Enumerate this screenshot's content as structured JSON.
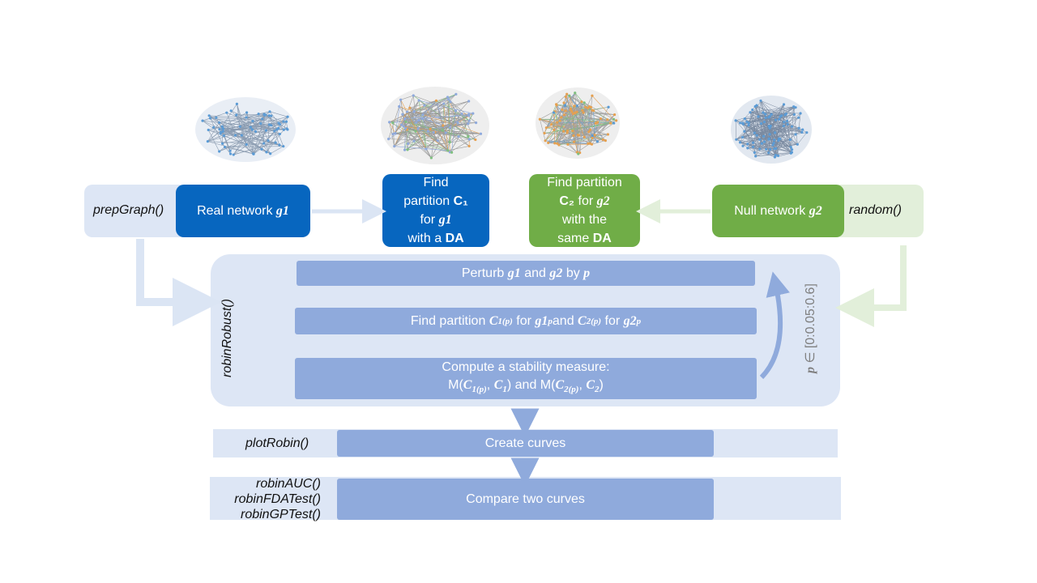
{
  "top": {
    "prep_fn": "prepGraph()",
    "real_network_label": "Real network",
    "real_network_var": "g1",
    "find_c1": {
      "line1": "Find",
      "line2": "partition",
      "c_label": "C₁",
      "line3": "for",
      "var": "g1",
      "line4": "with a",
      "da": "DA"
    },
    "find_c2": {
      "line1": "Find partition",
      "c_label": "C₂",
      "for": "for",
      "var": "g2",
      "line3": "with the",
      "line4": "same",
      "da": "DA"
    },
    "null_network_label": "Null network",
    "null_network_var": "g2",
    "random_fn": "random()"
  },
  "robust": {
    "fn": "robinRobust()",
    "param": "p ∈ [0:0.05:0.6]",
    "step1": {
      "pre": "Perturb",
      "g1": "g1",
      "and": "and",
      "g2": "g2",
      "by": "by",
      "p": "p"
    },
    "step2": {
      "pre": "Find partition",
      "c1": "C",
      "c1_sub": "1(p)",
      "for1": "for",
      "g1": "g1",
      "g1_sub": "p",
      "and": "and",
      "c2": "C",
      "c2_sub": "2(p)",
      "for2": "for",
      "g2": "g2",
      "g2_sub": "p"
    },
    "step3": {
      "line1": "Compute a stability measure:",
      "m": "M(",
      "c1p": "C",
      "c1p_sub": "1(p)",
      "comma": ",",
      "c1": "C",
      "c1_sub": "1",
      "close_and": ") and M(",
      "c2p": "C",
      "c2p_sub": "2(p)",
      "comma2": ",",
      "c2": "C",
      "c2_sub": "2",
      "close": ")"
    }
  },
  "plot": {
    "fn": "plotRobin()",
    "label": "Create curves"
  },
  "compare": {
    "fn1": "robinAUC()",
    "fn2": "robinFDATest()",
    "fn3": "robinGPTest()",
    "label": "Compare two curves"
  }
}
